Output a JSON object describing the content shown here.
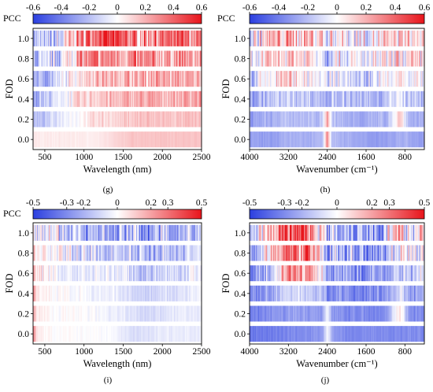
{
  "figure": {
    "colorscale": {
      "low": "#2b3fe0",
      "mid": "#ffffff",
      "high": "#e8141b"
    },
    "cbar_label": "PCC"
  },
  "chart_data": [
    {
      "id": "g",
      "type": "heatmap",
      "panel_label": "(g)",
      "title": "",
      "xlabel": "Wavelength (nm)",
      "ylabel": "FOD",
      "x_domain": "wavelength",
      "xlim": [
        350,
        2500
      ],
      "xticks": [
        500,
        1000,
        1500,
        2000,
        2500
      ],
      "xtick_labels": [
        "500",
        "1000",
        "1500",
        "2000",
        "2500"
      ],
      "rows": [
        "1.0",
        "0.8",
        "0.6",
        "0.4",
        "0.2",
        "0.0"
      ],
      "colorbar": {
        "min": -0.6,
        "max": 0.6,
        "ticks": [
          -0.6,
          -0.4,
          -0.2,
          0,
          0.2,
          0.4,
          0.6
        ],
        "tick_labels": [
          "-0.6",
          "-0.4",
          "-0.2",
          "0",
          "0.2",
          "0.4",
          "0.6"
        ]
      },
      "pcc_profile": {
        "x": [
          350,
          450,
          550,
          700,
          800,
          900,
          1000,
          1200,
          1400,
          1600,
          1800,
          2000,
          2200,
          2400,
          2500
        ],
        "rows": [
          [
            -0.15,
            -0.25,
            -0.2,
            -0.15,
            0.05,
            0.25,
            0.3,
            0.5,
            0.45,
            0.3,
            0.3,
            0.35,
            0.35,
            0.3,
            0.3
          ],
          [
            -0.2,
            -0.25,
            -0.2,
            -0.1,
            0.05,
            0.15,
            0.25,
            0.3,
            0.3,
            0.25,
            0.25,
            0.25,
            0.25,
            0.2,
            0.2
          ],
          [
            -0.2,
            -0.25,
            -0.2,
            -0.1,
            0.0,
            0.1,
            0.15,
            0.2,
            0.2,
            0.2,
            0.2,
            0.2,
            0.2,
            0.2,
            0.2
          ],
          [
            -0.25,
            -0.2,
            -0.15,
            -0.05,
            0.0,
            0.05,
            0.1,
            0.15,
            0.15,
            0.2,
            0.2,
            0.2,
            0.2,
            0.25,
            0.25
          ],
          [
            -0.2,
            -0.2,
            -0.15,
            -0.05,
            0.0,
            0.0,
            0.05,
            0.1,
            0.1,
            0.15,
            0.15,
            0.15,
            0.15,
            0.15,
            0.15
          ],
          [
            0.05,
            0.05,
            0.05,
            0.05,
            0.05,
            0.05,
            0.05,
            0.05,
            0.1,
            0.15,
            0.15,
            0.15,
            0.15,
            0.15,
            0.15
          ]
        ],
        "noise": [
          0.35,
          0.3,
          0.2,
          0.15,
          0.08,
          0.02
        ]
      }
    },
    {
      "id": "h",
      "type": "heatmap",
      "panel_label": "(h)",
      "title": "",
      "xlabel": "Wavenumber (cm⁻¹)",
      "ylabel": "FOD",
      "x_domain": "wavenumber",
      "xlim": [
        4000,
        400
      ],
      "xticks": [
        4000,
        3200,
        2400,
        1600,
        800
      ],
      "xtick_labels": [
        "4000",
        "3200",
        "2400",
        "1600",
        "800"
      ],
      "rows": [
        "1.0",
        "0.8",
        "0.6",
        "0.4",
        "0.2",
        "0.0"
      ],
      "colorbar": {
        "min": -0.6,
        "max": 0.6,
        "ticks": [
          -0.6,
          -0.4,
          -0.2,
          0,
          0.2,
          0.4,
          0.6
        ],
        "tick_labels": [
          "-0.6",
          "-0.4",
          "-0.2",
          "0",
          "0.2",
          "0.4",
          "0.6"
        ]
      },
      "pcc_profile": {
        "x": [
          4000,
          3600,
          3200,
          2800,
          2500,
          2400,
          2300,
          2000,
          1600,
          1200,
          900,
          700,
          500,
          400
        ],
        "rows": [
          [
            -0.1,
            0.15,
            0.2,
            0.15,
            0.1,
            -0.2,
            0.1,
            0.0,
            -0.05,
            0.05,
            0.15,
            0.05,
            0.1,
            0.1
          ],
          [
            -0.15,
            0.1,
            0.15,
            0.1,
            0.05,
            -0.25,
            0.05,
            -0.05,
            -0.1,
            0.0,
            0.1,
            0.0,
            0.05,
            0.05
          ],
          [
            -0.2,
            0.0,
            0.1,
            0.05,
            0.0,
            -0.3,
            0.0,
            -0.1,
            -0.15,
            -0.05,
            0.05,
            -0.05,
            0.0,
            0.0
          ],
          [
            -0.3,
            -0.2,
            -0.15,
            -0.15,
            -0.2,
            -0.3,
            -0.15,
            -0.2,
            -0.25,
            -0.2,
            -0.05,
            -0.2,
            -0.2,
            -0.2
          ],
          [
            -0.3,
            -0.25,
            -0.2,
            -0.2,
            -0.2,
            0.3,
            -0.2,
            -0.25,
            -0.25,
            -0.25,
            0.15,
            -0.25,
            -0.25,
            -0.25
          ],
          [
            -0.3,
            -0.3,
            -0.25,
            -0.25,
            -0.2,
            0.3,
            -0.2,
            -0.25,
            -0.3,
            -0.3,
            -0.25,
            -0.25,
            -0.3,
            -0.3
          ]
        ],
        "noise": [
          0.35,
          0.3,
          0.25,
          0.15,
          0.08,
          0.04
        ]
      }
    },
    {
      "id": "i",
      "type": "heatmap",
      "panel_label": "(i)",
      "title": "",
      "xlabel": "Wavelength (nm)",
      "ylabel": "FOD",
      "x_domain": "wavelength",
      "xlim": [
        350,
        2500
      ],
      "xticks": [
        500,
        1000,
        1500,
        2000,
        2500
      ],
      "xtick_labels": [
        "500",
        "1000",
        "1500",
        "2000",
        "2500"
      ],
      "rows": [
        "1.0",
        "0.8",
        "0.6",
        "0.4",
        "0.2",
        "0.0"
      ],
      "colorbar": {
        "min": -0.5,
        "max": 0.5,
        "ticks": [
          -0.5,
          -0.3,
          -0.2,
          0,
          0.2,
          0.3,
          0.5
        ],
        "tick_labels": [
          "-0.5",
          "-0.3",
          "-0.2",
          "0",
          "0.2",
          "0.3",
          "0.5"
        ]
      },
      "pcc_profile": {
        "x": [
          350,
          400,
          600,
          800,
          1000,
          1200,
          1400,
          1600,
          1800,
          2000,
          2200,
          2400,
          2500
        ],
        "rows": [
          [
            0.2,
            0.05,
            0.0,
            -0.1,
            -0.2,
            -0.25,
            -0.2,
            -0.2,
            -0.25,
            -0.2,
            -0.2,
            -0.15,
            -0.15
          ],
          [
            0.2,
            0.05,
            0.0,
            -0.05,
            -0.1,
            -0.15,
            -0.1,
            -0.15,
            -0.2,
            -0.15,
            -0.15,
            -0.1,
            -0.1
          ],
          [
            0.3,
            0.05,
            0.0,
            -0.05,
            -0.05,
            -0.05,
            -0.05,
            -0.1,
            -0.15,
            -0.1,
            -0.1,
            -0.05,
            -0.05
          ],
          [
            0.3,
            0.05,
            0.0,
            0.0,
            -0.02,
            -0.05,
            -0.05,
            -0.1,
            -0.12,
            -0.1,
            -0.08,
            -0.05,
            -0.05
          ],
          [
            0.25,
            0.05,
            0.0,
            0.0,
            0.0,
            -0.02,
            -0.03,
            -0.08,
            -0.1,
            -0.08,
            -0.05,
            -0.05,
            -0.05
          ],
          [
            0.3,
            0.05,
            0.0,
            0.0,
            0.0,
            0.0,
            -0.02,
            -0.08,
            -0.08,
            -0.05,
            -0.05,
            -0.05,
            -0.05
          ]
        ],
        "noise": [
          0.3,
          0.2,
          0.12,
          0.06,
          0.04,
          0.03
        ]
      }
    },
    {
      "id": "j",
      "type": "heatmap",
      "panel_label": "(j)",
      "title": "",
      "xlabel": "Wavenumber (cm⁻¹)",
      "ylabel": "FOD",
      "x_domain": "wavenumber",
      "xlim": [
        4000,
        400
      ],
      "xticks": [
        4000,
        3200,
        2400,
        1600,
        800
      ],
      "xtick_labels": [
        "4000",
        "3200",
        "2400",
        "1600",
        "800"
      ],
      "rows": [
        "1.0",
        "0.8",
        "0.6",
        "0.4",
        "0.2",
        "0.0"
      ],
      "colorbar": {
        "min": -0.5,
        "max": 0.5,
        "ticks": [
          -0.5,
          -0.3,
          -0.2,
          0,
          0.2,
          0.3,
          0.5
        ],
        "tick_labels": [
          "-0.5",
          "-0.3",
          "-0.2",
          "0",
          "0.2",
          "0.3",
          "0.5"
        ]
      },
      "pcc_profile": {
        "x": [
          4000,
          3600,
          3200,
          2800,
          2500,
          2400,
          2300,
          2000,
          1600,
          1200,
          900,
          700,
          500,
          400
        ],
        "rows": [
          [
            -0.2,
            0.1,
            0.4,
            0.35,
            0.1,
            -0.2,
            -0.1,
            -0.15,
            -0.2,
            -0.15,
            0.1,
            0.0,
            0.05,
            0.05
          ],
          [
            -0.25,
            0.0,
            0.35,
            0.3,
            0.05,
            -0.25,
            -0.15,
            -0.2,
            -0.25,
            -0.2,
            0.05,
            -0.05,
            0.0,
            0.0
          ],
          [
            -0.3,
            -0.15,
            0.25,
            0.2,
            0.0,
            -0.3,
            -0.2,
            -0.25,
            -0.3,
            -0.25,
            -0.1,
            -0.15,
            -0.1,
            -0.1
          ],
          [
            -0.3,
            -0.25,
            -0.1,
            -0.1,
            -0.2,
            -0.3,
            -0.25,
            -0.3,
            -0.3,
            -0.3,
            -0.05,
            -0.25,
            -0.25,
            -0.25
          ],
          [
            -0.35,
            -0.3,
            -0.25,
            -0.25,
            -0.25,
            0.0,
            -0.25,
            -0.3,
            -0.3,
            -0.3,
            0.1,
            -0.3,
            -0.3,
            -0.3
          ],
          [
            -0.35,
            -0.35,
            -0.3,
            -0.3,
            -0.25,
            0.0,
            -0.25,
            -0.3,
            -0.3,
            -0.3,
            -0.3,
            -0.3,
            -0.3,
            -0.3
          ]
        ],
        "noise": [
          0.35,
          0.3,
          0.2,
          0.12,
          0.06,
          0.04
        ]
      }
    }
  ]
}
